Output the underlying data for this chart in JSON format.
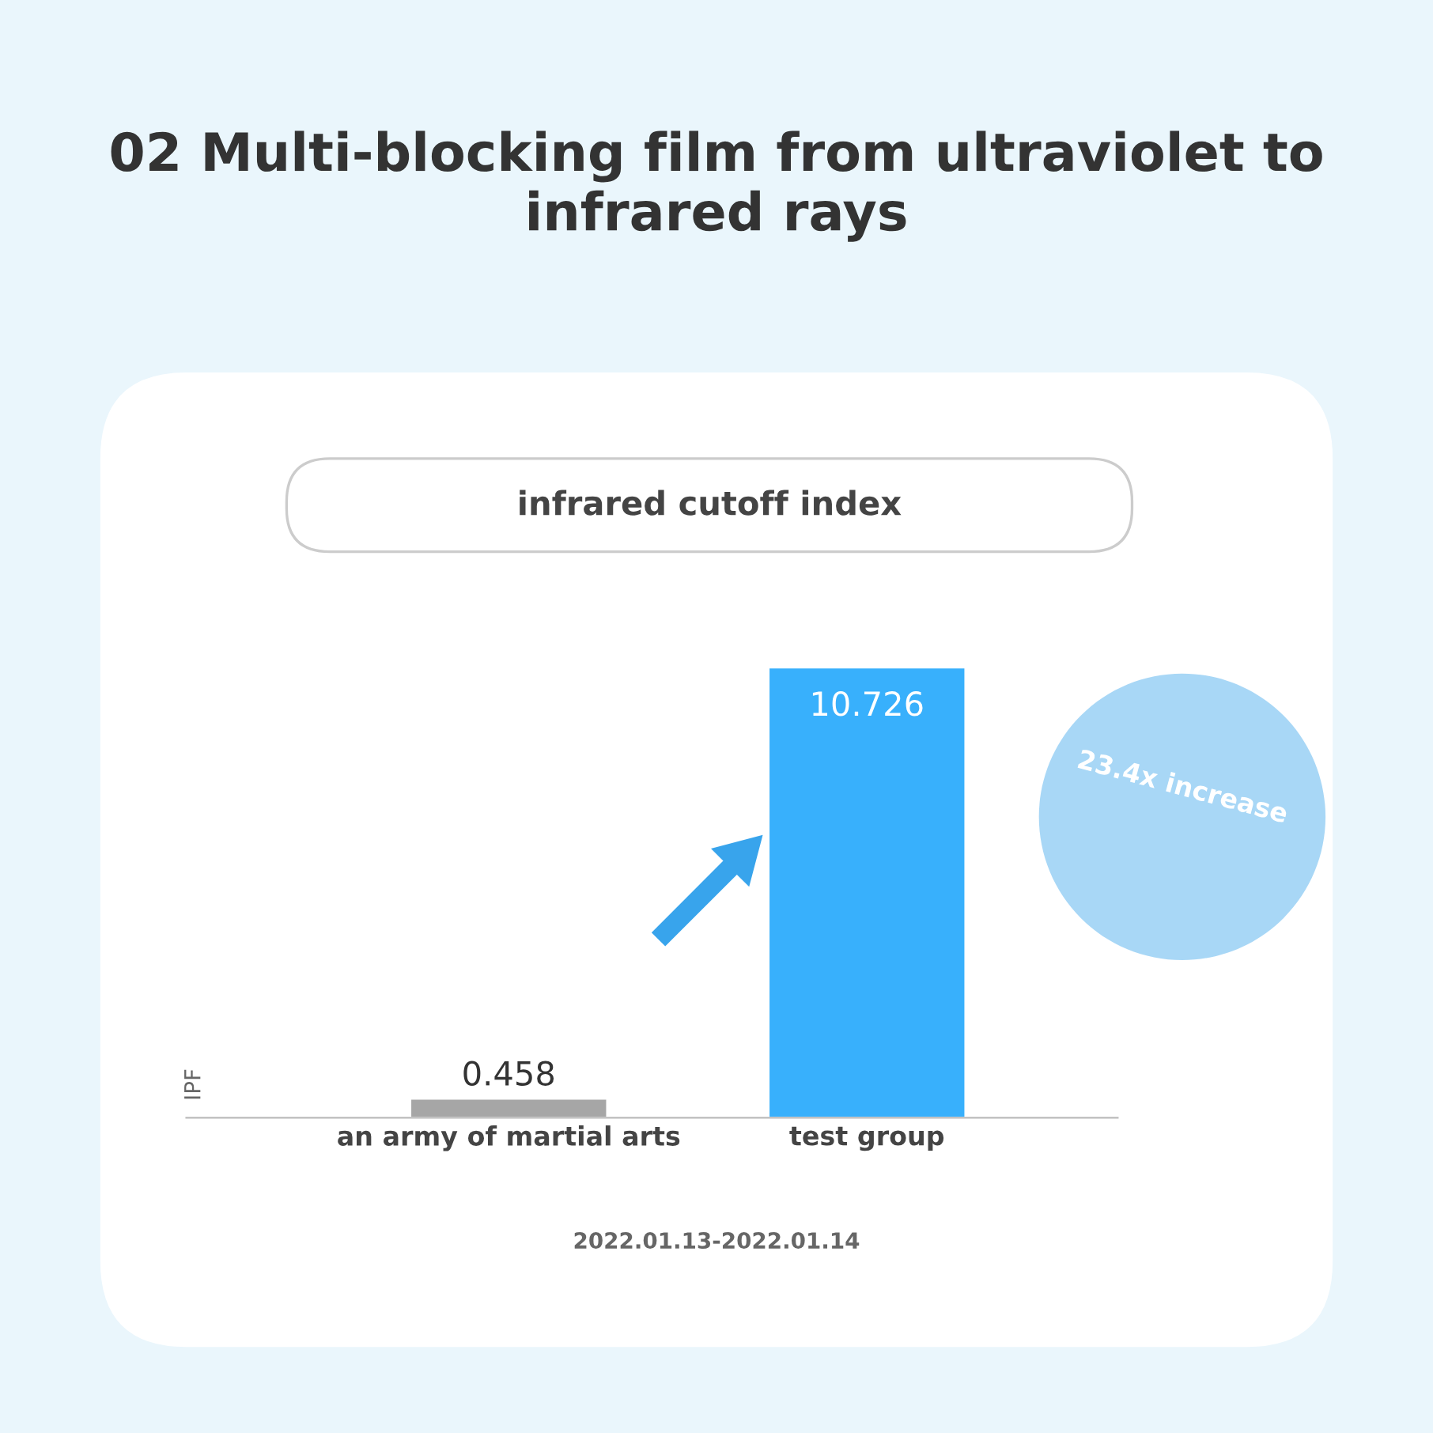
{
  "chart_data": {
    "type": "bar",
    "title": "02 Multi-blocking film from ultraviolet to infrared rays",
    "subtitle": "infrared cutoff index",
    "ylabel": "IPF",
    "categories": [
      "an army of martial arts",
      "test group"
    ],
    "values": [
      0.458,
      10.726
    ],
    "colors": [
      "#a6a6a6",
      "#38b0fc"
    ],
    "data_labels": true,
    "tick_labels": "x",
    "grid": false,
    "legend": false,
    "annotations": [
      "23.4x increase",
      "2022.01.13-2022.01.14"
    ]
  }
}
